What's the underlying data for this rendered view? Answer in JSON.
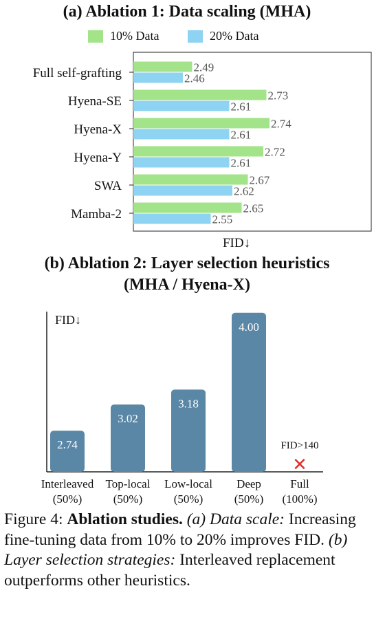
{
  "panel_a_title": "(a) Ablation 1: Data scaling (MHA)",
  "panel_b_title_line1": "(b) Ablation 2: Layer selection heuristics",
  "panel_b_title_line2": "(MHA / Hyena-X)",
  "colors": {
    "green": "#A3E38A",
    "blue": "#8FD3F2",
    "bar_b": "#5B87A6",
    "cross": "#E0312B",
    "text": "#111111"
  },
  "chart_data": [
    {
      "type": "bar",
      "orientation": "horizontal",
      "title": "(a) Ablation 1: Data scaling (MHA)",
      "xlabel": "FID↓",
      "categories": [
        "Full self-grafting",
        "Hyena-SE",
        "Hyena-X",
        "Hyena-Y",
        "SWA",
        "Mamba-2"
      ],
      "series": [
        {
          "name": "10% Data",
          "values": [
            2.49,
            2.73,
            2.74,
            2.72,
            2.67,
            2.65
          ],
          "color": "#A3E38A"
        },
        {
          "name": "20% Data",
          "values": [
            2.46,
            2.61,
            2.61,
            2.61,
            2.62,
            2.55
          ],
          "color": "#8FD3F2"
        }
      ],
      "xlim": [
        2.3,
        2.85
      ],
      "legend": "top"
    },
    {
      "type": "bar",
      "title": "(b) Ablation 2: Layer selection heuristics (MHA / Hyena-X)",
      "ylabel": "FID↓",
      "categories": [
        {
          "name": "Interleaved",
          "sub": "(50%)"
        },
        {
          "name": "Top-local",
          "sub": "(50%)"
        },
        {
          "name": "Low-local",
          "sub": "(50%)"
        },
        {
          "name": "Deep",
          "sub": "(50%)"
        },
        {
          "name": "Full",
          "sub": "(100%)"
        }
      ],
      "values": [
        2.74,
        3.02,
        3.18,
        4.0,
        null
      ],
      "value_labels": [
        "2.74",
        "3.02",
        "3.18",
        "4.00",
        ""
      ],
      "annotations": [
        {
          "category": "Full",
          "text": "FID>140",
          "marker": "✕"
        }
      ],
      "ylim": [
        2.3,
        4.1
      ]
    }
  ],
  "caption": {
    "fig": "Figure 4: ",
    "bold": "Ablation studies.",
    "a_label": " (a) Data scale:",
    "a_text": " Increasing fine-tuning data from 10% to 20% improves FID.",
    "b_label": " (b) Layer selection strategies:",
    "b_text": " Interleaved replacement outperforms other heuristics."
  }
}
